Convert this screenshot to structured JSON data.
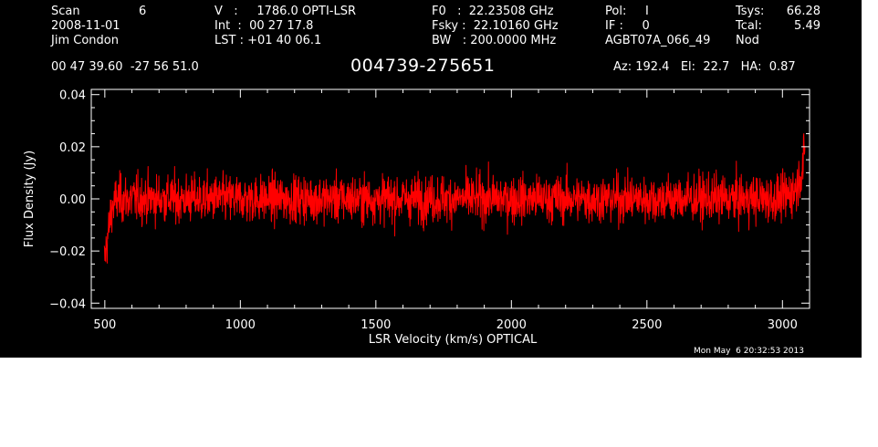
{
  "header": {
    "scan_label": "Scan",
    "scan_value": "6",
    "date": "2008-11-01",
    "observer": "Jim Condon",
    "v_line": "V   :     1786.0 OPTI-LSR",
    "int_line": "Int  :  00 27 17.8",
    "lst_line": "LST : +01 40 06.1",
    "f0_line": "F0   :  22.23508 GHz",
    "fsky_line": "Fsky :  22.10160 GHz",
    "bw_line": "BW   : 200.0000 MHz",
    "pol_line": "Pol:     I",
    "if_line": "IF :     0",
    "project": "AGBT07A_066_49",
    "tsys_label": "Tsys:",
    "tsys_value": "66.28",
    "tcal_label": "Tcal:",
    "tcal_value": "5.49",
    "proc": "Nod",
    "coords": "00 47 39.60  -27 56 51.0",
    "source": "004739-275651",
    "az_el_ha": "Az: 192.4   El:  22.7   HA:  0.87"
  },
  "footer": {
    "timestamp": "Mon May  6 20:32:53 2013"
  },
  "colors": {
    "background": "#000000",
    "axes": "#ffffff",
    "trace": "#ff0000"
  },
  "chart_data": {
    "type": "line",
    "title": "004739-275651",
    "xlabel": "LSR Velocity (km/s) OPTICAL",
    "ylabel": "Flux Density (Jy)",
    "xlim": [
      450,
      3100
    ],
    "ylim": [
      -0.042,
      0.042
    ],
    "xticks": [
      500,
      1000,
      1500,
      2000,
      2500,
      3000
    ],
    "yticks": [
      -0.04,
      -0.02,
      0.0,
      0.02,
      0.04
    ],
    "xtick_labels": [
      "500",
      "1000",
      "1500",
      "2000",
      "2500",
      "3000"
    ],
    "ytick_labels": [
      "−0.04",
      "−0.02",
      "0.00",
      "0.02",
      "0.04"
    ],
    "grid": false,
    "series": [
      {
        "x_start": 498,
        "x_end": 3083,
        "baseline_points": [
          [
            498,
            -0.024
          ],
          [
            510,
            -0.015
          ],
          [
            525,
            -0.004
          ],
          [
            545,
            0.0
          ],
          [
            3000,
            0.0
          ],
          [
            3050,
            0.004
          ],
          [
            3075,
            0.012
          ],
          [
            3083,
            0.018
          ]
        ],
        "noise_rms": 0.0045,
        "peak_max": 0.028,
        "peak_min": -0.029
      }
    ]
  }
}
